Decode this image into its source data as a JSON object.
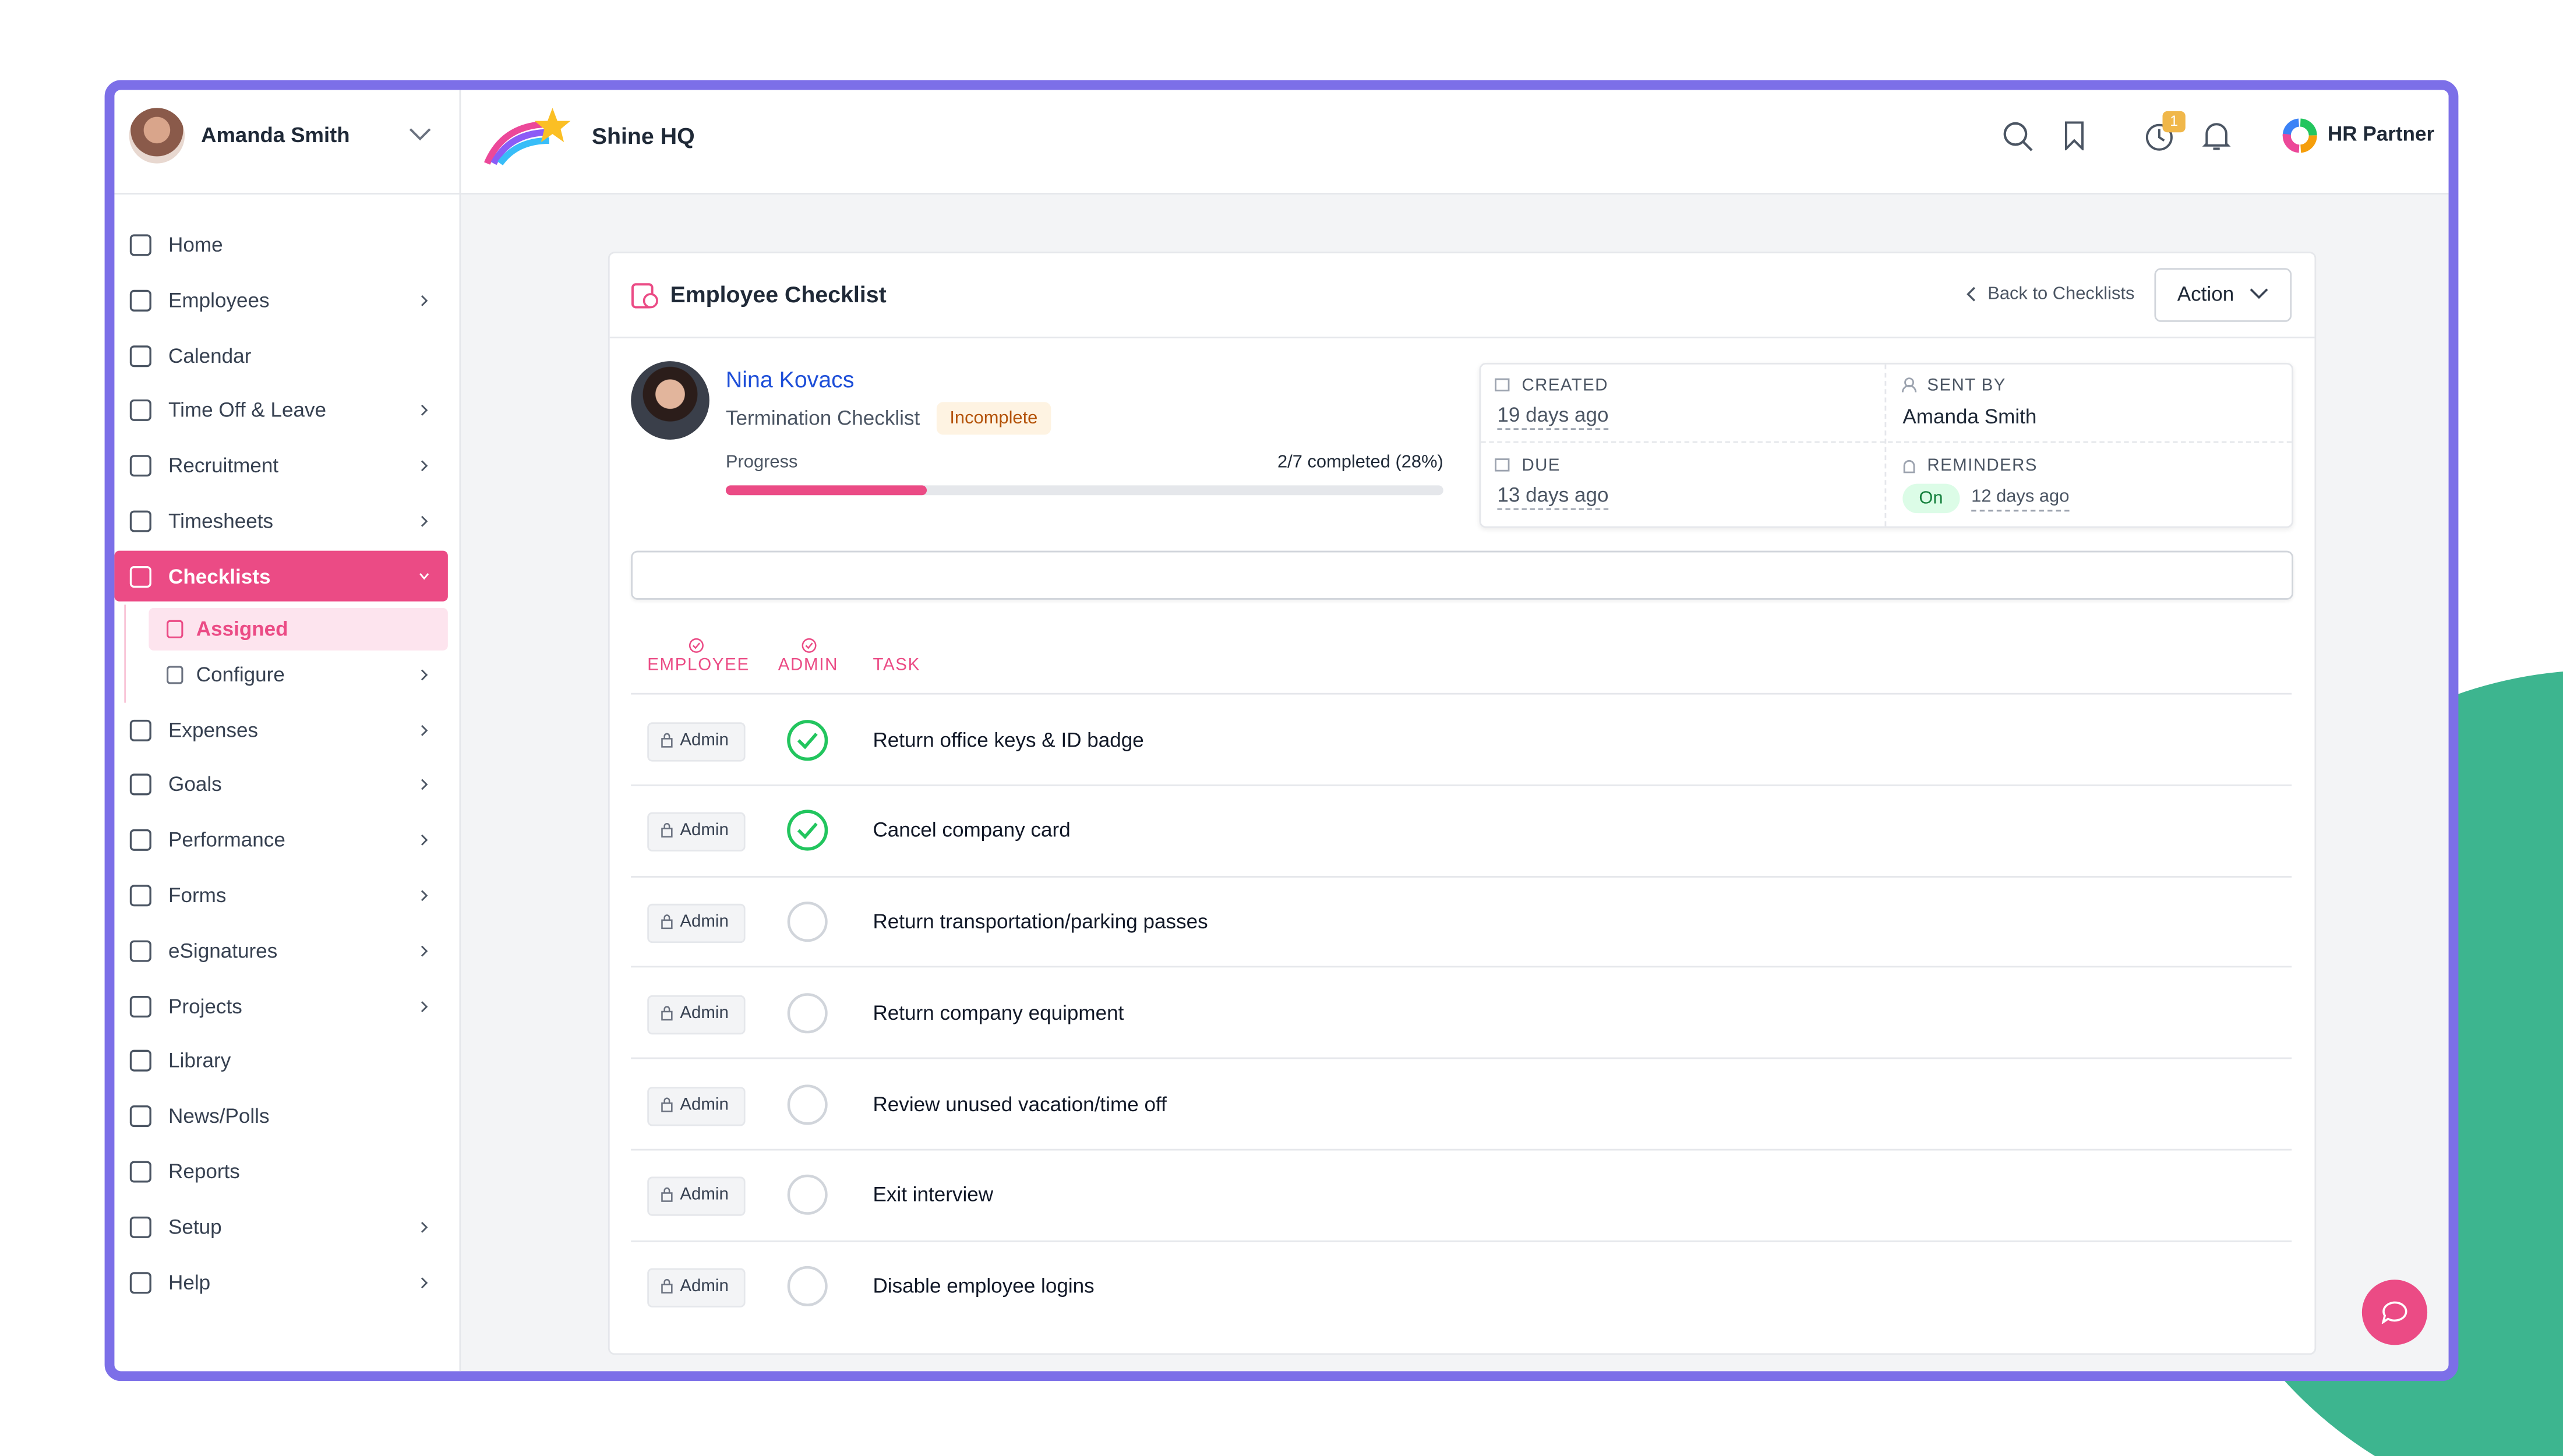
{
  "sidebar": {
    "user_name": "Amanda Smith",
    "nav": [
      {
        "label": "Home",
        "has_submenu": false
      },
      {
        "label": "Employees",
        "has_submenu": true
      },
      {
        "label": "Calendar",
        "has_submenu": false
      },
      {
        "label": "Time Off & Leave",
        "has_submenu": true
      },
      {
        "label": "Recruitment",
        "has_submenu": true
      },
      {
        "label": "Timesheets",
        "has_submenu": true
      },
      {
        "label": "Checklists",
        "has_submenu": true,
        "active": true
      },
      {
        "label": "Expenses",
        "has_submenu": true
      },
      {
        "label": "Goals",
        "has_submenu": true
      },
      {
        "label": "Performance",
        "has_submenu": true
      },
      {
        "label": "Forms",
        "has_submenu": true
      },
      {
        "label": "eSignatures",
        "has_submenu": true
      },
      {
        "label": "Projects",
        "has_submenu": true
      },
      {
        "label": "Library",
        "has_submenu": false
      },
      {
        "label": "News/Polls",
        "has_submenu": false
      },
      {
        "label": "Reports",
        "has_submenu": false
      },
      {
        "label": "Setup",
        "has_submenu": true
      },
      {
        "label": "Help",
        "has_submenu": true
      }
    ],
    "submenu": [
      {
        "label": "Assigned",
        "active": true,
        "has_submenu": false
      },
      {
        "label": "Configure",
        "active": false,
        "has_submenu": true
      }
    ]
  },
  "header": {
    "company": "Shine HQ",
    "notification_count": 1,
    "brand": "HR Partner"
  },
  "checklist": {
    "title": "Employee Checklist",
    "back_link": "Back to Checklists",
    "action": "Action",
    "employee": "Nina Kovacs",
    "checklist_name": "Termination Checklist",
    "status": "Incomplete",
    "progress_label": "Progress",
    "progress_text": "2/7 completed (28%)",
    "progress_percent": 28,
    "created_label": "CREATED",
    "created": "19 days ago",
    "sent_by_label": "SENT BY",
    "sent_by": "Amanda Smith",
    "due_label": "DUE",
    "due": "13 days ago",
    "reminders_label": "REMINDERS",
    "reminders_status": "On",
    "reminders_time": "12 days ago",
    "columns": [
      "EMPLOYEE",
      "ADMIN",
      "TASK"
    ],
    "tasks": [
      {
        "assignee": "Admin",
        "done": true,
        "task": "Return office keys & ID badge"
      },
      {
        "assignee": "Admin",
        "done": true,
        "task": "Cancel company card"
      },
      {
        "assignee": "Admin",
        "done": false,
        "task": "Return transportation/parking passes"
      },
      {
        "assignee": "Admin",
        "done": false,
        "task": "Return company equipment"
      },
      {
        "assignee": "Admin",
        "done": false,
        "task": "Review unused vacation/time off"
      },
      {
        "assignee": "Admin",
        "done": false,
        "task": "Exit interview"
      },
      {
        "assignee": "Admin",
        "done": false,
        "task": "Disable employee logins"
      }
    ]
  }
}
